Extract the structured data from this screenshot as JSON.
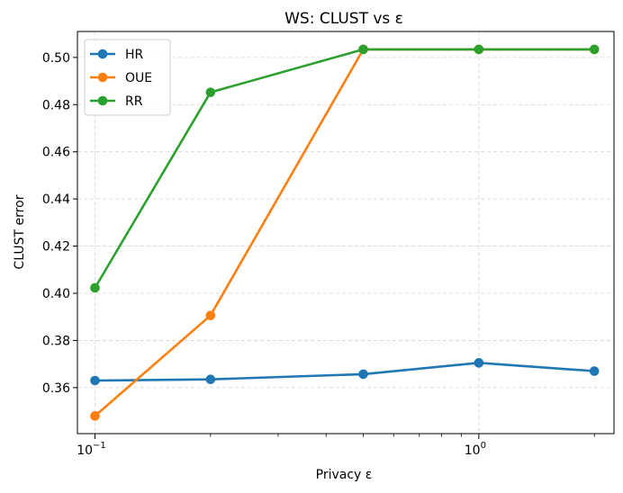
{
  "chart_data": {
    "type": "line",
    "title": "WS: CLUST vs ε",
    "xlabel": "Privacy ε",
    "ylabel": "CLUST error",
    "x_scale": "log",
    "x": [
      0.1,
      0.2,
      0.5,
      1.0,
      2.0
    ],
    "xlim": [
      0.09,
      2.25
    ],
    "ylim": [
      0.3405,
      0.511
    ],
    "x_ticks": [
      {
        "value": 0.1,
        "base": "10",
        "exp": "−1"
      },
      {
        "value": 1.0,
        "base": "10",
        "exp": "0"
      }
    ],
    "y_ticks": [
      0.36,
      0.38,
      0.4,
      0.42,
      0.44,
      0.46,
      0.48,
      0.5
    ],
    "grid": true,
    "legend": "top-left",
    "series": [
      {
        "name": "HR",
        "color": "#1f77b4",
        "values": [
          0.363,
          0.3635,
          0.3657,
          0.3705,
          0.367
        ]
      },
      {
        "name": "OUE",
        "color": "#ff7f0e",
        "values": [
          0.348,
          0.3906,
          0.5034,
          0.5034,
          0.5034
        ]
      },
      {
        "name": "RR",
        "color": "#2ca02c",
        "values": [
          0.4023,
          0.4852,
          0.5034,
          0.5034,
          0.5034
        ]
      }
    ]
  }
}
